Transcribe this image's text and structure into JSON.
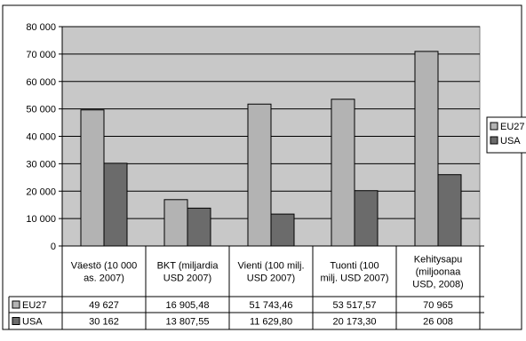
{
  "chart_data": {
    "type": "bar",
    "categories": [
      [
        "Väestö (10 000",
        "as. 2007)"
      ],
      [
        "BKT (miljardia",
        "USD 2007)"
      ],
      [
        "Vienti (100 milj.",
        "USD 2007)"
      ],
      [
        "Tuonti (100",
        "milj. USD 2007)"
      ],
      [
        "Kehitysapu",
        "(miljoonaa",
        "USD, 2008)"
      ]
    ],
    "series": [
      {
        "name": "EU27",
        "values": [
          49627,
          16905.48,
          51743.46,
          53517.57,
          70965
        ],
        "labels": [
          "49 627",
          "16 905,48",
          "51 743,46",
          "53 517,57",
          "70 965"
        ],
        "color": "#b3b3b3"
      },
      {
        "name": "USA",
        "values": [
          30162,
          13807.55,
          11629.8,
          20173.3,
          26008
        ],
        "labels": [
          "30 162",
          "13 807,55",
          "11 629,80",
          "20 173,30",
          "26 008"
        ],
        "color": "#6b6b6b"
      }
    ],
    "ylim": [
      0,
      80000
    ],
    "yticks": [
      0,
      10000,
      20000,
      30000,
      40000,
      50000,
      60000,
      70000,
      80000
    ],
    "ytick_labels": [
      "0",
      "10 000",
      "20 000",
      "30 000",
      "40 000",
      "50 000",
      "60 000",
      "70 000",
      "80 000"
    ],
    "grid": true,
    "legend_position": "right",
    "data_table": true,
    "plot_background": "#c8c8c8",
    "title": "",
    "xlabel": "",
    "ylabel": ""
  }
}
